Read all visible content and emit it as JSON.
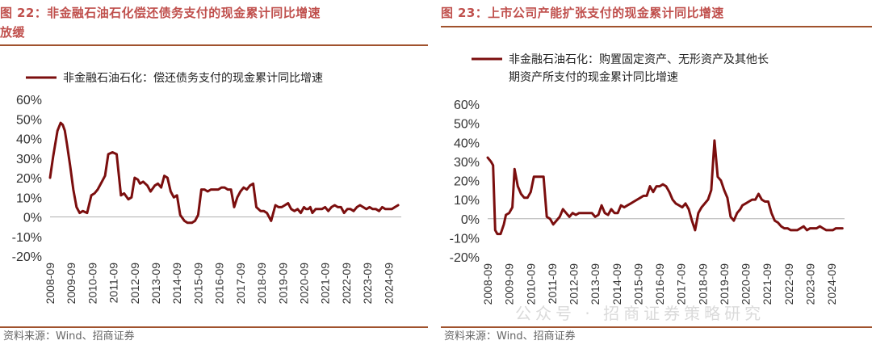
{
  "colors": {
    "line": "#7b0e0e",
    "title": "#c0504d",
    "rule": "#a0522d"
  },
  "source_text": "资料来源：Wind、招商证券",
  "watermark": "公众号 · 招商证券策略研究",
  "chart_data": [
    {
      "type": "line",
      "title": "图 22：非金融石油石化偿还债务支付的现金累计同比增速放缓",
      "title_lines": [
        "图 22：非金融石油石化偿还债务支付的现金累计同比增速",
        "放缓"
      ],
      "legend": [
        "非金融石油石化：偿还债务支付的现金累计同比增速"
      ],
      "xlabel": "",
      "ylabel": "",
      "ylim": [
        -20,
        60
      ],
      "yticks": [
        "60%",
        "50%",
        "40%",
        "30%",
        "20%",
        "10%",
        "0%",
        "-10%",
        "-20%"
      ],
      "xticks": [
        "2008-09",
        "2009-09",
        "2010-09",
        "2011-09",
        "2012-09",
        "2013-09",
        "2014-09",
        "2015-09",
        "2016-09",
        "2017-09",
        "2018-09",
        "2019-09",
        "2020-09",
        "2021-09",
        "2022-09",
        "2023-09",
        "2024-09"
      ],
      "xlim": [
        2008.75,
        2025.35
      ],
      "series": [
        {
          "x": [
            2008.75,
            2008.9,
            2009.1,
            2009.25,
            2009.35,
            2009.45,
            2009.55,
            2009.7,
            2009.85,
            2010.0,
            2010.15,
            2010.3,
            2010.5,
            2010.7,
            2010.85,
            2011.0,
            2011.2,
            2011.35,
            2011.5,
            2011.7,
            2011.9,
            2012.1,
            2012.25,
            2012.45,
            2012.6,
            2012.75,
            2012.9,
            2013.0,
            2013.15,
            2013.35,
            2013.5,
            2013.7,
            2013.85,
            2014.0,
            2014.15,
            2014.3,
            2014.45,
            2014.6,
            2014.75,
            2014.9,
            2015.1,
            2015.25,
            2015.45,
            2015.6,
            2015.75,
            2015.9,
            2016.05,
            2016.2,
            2016.35,
            2016.5,
            2016.7,
            2016.85,
            2017.0,
            2017.15,
            2017.3,
            2017.45,
            2017.6,
            2017.75,
            2017.9,
            2018.05,
            2018.2,
            2018.35,
            2018.5,
            2018.7,
            2018.85,
            2019.0,
            2019.2,
            2019.4,
            2019.55,
            2019.7,
            2019.85,
            2020.0,
            2020.15,
            2020.3,
            2020.45,
            2020.6,
            2020.75,
            2020.85,
            2020.95,
            2021.05,
            2021.15,
            2021.3,
            2021.45,
            2021.6,
            2021.75,
            2021.9,
            2022.05,
            2022.2,
            2022.35,
            2022.5,
            2022.65,
            2022.8,
            2022.95,
            2023.1,
            2023.25,
            2023.4,
            2023.55,
            2023.7,
            2023.85,
            2024.0,
            2024.15,
            2024.3,
            2024.45,
            2024.6,
            2024.75,
            2024.9,
            2025.05,
            2025.2
          ],
          "values": [
            20,
            31,
            44,
            48,
            47,
            44,
            37,
            26,
            14,
            5,
            2,
            3,
            2,
            11,
            12,
            14,
            18,
            21,
            32,
            33,
            32,
            11,
            12,
            9,
            10,
            20,
            19,
            17,
            18,
            16,
            13,
            16,
            17,
            15,
            21,
            20,
            13,
            10,
            11,
            1,
            -2,
            -3,
            -3,
            -2,
            1,
            14,
            14,
            13,
            14,
            14,
            14,
            15,
            15,
            14,
            14,
            5,
            10,
            13,
            15,
            14,
            16,
            17,
            5,
            3,
            3,
            2,
            -2,
            6,
            5,
            5,
            6,
            7,
            4,
            3,
            4,
            2,
            5,
            4,
            4,
            5,
            2,
            4,
            4,
            4,
            5,
            3,
            5,
            6,
            5,
            5,
            2,
            4,
            4,
            3,
            5,
            6,
            5,
            4,
            5,
            4,
            4,
            3,
            5,
            4,
            4,
            4,
            5,
            6
          ]
        }
      ]
    },
    {
      "type": "line",
      "title": "图 23：上市公司产能扩张支付的现金累计同比增速",
      "legend": [
        "非金融石油石化：购置固定资产、无形资产及其他长期资产所支付的现金累计同比增速"
      ],
      "legend_lines": [
        "非金融石油石化：购置固定资产、无形资产及其他长",
        "期资产所支付的现金累计同比增速"
      ],
      "xlabel": "",
      "ylabel": "",
      "ylim": [
        -20,
        60
      ],
      "yticks": [
        "60%",
        "50%",
        "40%",
        "30%",
        "20%",
        "10%",
        "0%",
        "-10%",
        "-20%"
      ],
      "xticks": [
        "2008-09",
        "2009-09",
        "2010-09",
        "2011-09",
        "2012-09",
        "2013-09",
        "2014-09",
        "2015-09",
        "2016-09",
        "2017-09",
        "2018-09",
        "2019-09",
        "2020-09",
        "2021-09",
        "2022-09",
        "2023-09",
        "2024-09"
      ],
      "xlim": [
        2008.75,
        2025.35
      ],
      "series": [
        {
          "x": [
            2008.75,
            2008.9,
            2009.0,
            2009.1,
            2009.2,
            2009.35,
            2009.5,
            2009.6,
            2009.75,
            2009.9,
            2010.0,
            2010.15,
            2010.3,
            2010.45,
            2010.6,
            2010.75,
            2010.9,
            2011.05,
            2011.2,
            2011.35,
            2011.5,
            2011.65,
            2011.8,
            2011.95,
            2012.1,
            2012.25,
            2012.4,
            2012.55,
            2012.7,
            2012.85,
            2013.0,
            2013.15,
            2013.3,
            2013.45,
            2013.6,
            2013.75,
            2013.9,
            2014.05,
            2014.2,
            2014.35,
            2014.5,
            2014.65,
            2014.8,
            2014.95,
            2015.1,
            2015.25,
            2015.4,
            2015.55,
            2015.7,
            2015.85,
            2016.0,
            2016.15,
            2016.3,
            2016.45,
            2016.6,
            2016.75,
            2016.9,
            2017.05,
            2017.2,
            2017.35,
            2017.5,
            2017.65,
            2017.8,
            2017.95,
            2018.1,
            2018.25,
            2018.4,
            2018.55,
            2018.7,
            2018.85,
            2019.0,
            2019.15,
            2019.3,
            2019.45,
            2019.6,
            2019.75,
            2019.9,
            2020.05,
            2020.2,
            2020.35,
            2020.5,
            2020.6,
            2020.75,
            2020.9,
            2021.05,
            2021.2,
            2021.35,
            2021.5,
            2021.65,
            2021.8,
            2021.95,
            2022.1,
            2022.25,
            2022.4,
            2022.55,
            2022.7,
            2022.85,
            2023.0,
            2023.15,
            2023.3,
            2023.45,
            2023.6,
            2023.75,
            2023.9,
            2024.05,
            2024.2,
            2024.35,
            2024.5,
            2024.65,
            2024.8,
            2024.95,
            2025.1,
            2025.25
          ],
          "values": [
            32,
            30,
            28,
            -6,
            -8,
            -8,
            -3,
            2,
            3,
            6,
            26,
            17,
            13,
            11,
            11,
            14,
            22,
            22,
            22,
            22,
            1,
            0,
            -3,
            -1,
            1,
            5,
            3,
            1,
            3,
            2,
            3,
            3,
            3,
            3,
            3,
            1,
            2,
            7,
            3,
            2,
            5,
            3,
            3,
            7,
            6,
            7,
            8,
            9,
            10,
            11,
            12,
            12,
            17,
            14,
            17,
            17,
            18,
            17,
            14,
            10,
            8,
            7,
            6,
            8,
            5,
            -1,
            -6,
            3,
            6,
            8,
            10,
            15,
            41,
            22,
            20,
            15,
            11,
            1,
            -1,
            3,
            5,
            7,
            8,
            9,
            10,
            10,
            13,
            10,
            9,
            9,
            3,
            -1,
            -2,
            -4,
            -5,
            -5,
            -6,
            -6,
            -6,
            -5,
            -4,
            -6,
            -5,
            -5,
            -5,
            -4,
            -5,
            -6,
            -6,
            -6,
            -5,
            -5,
            -5
          ]
        }
      ]
    }
  ]
}
